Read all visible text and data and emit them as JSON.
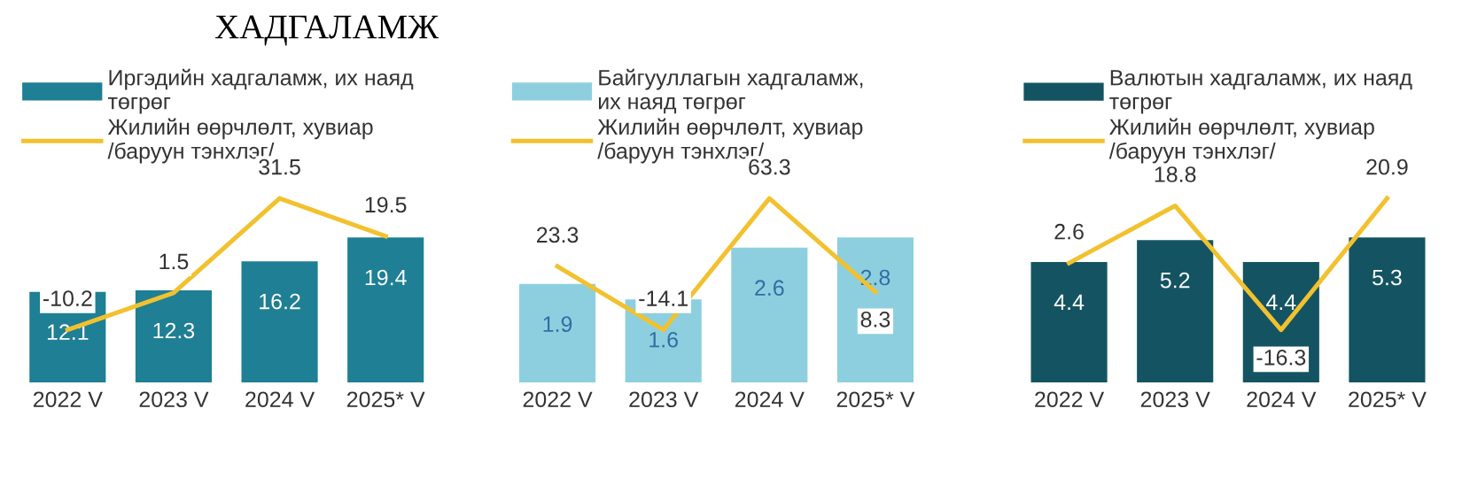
{
  "chart_data": [
    {
      "type": "bar",
      "title": "ХАДГАЛАМЖ",
      "categories": [
        "2022 V",
        "2023 V",
        "2024 V",
        "2025* V"
      ],
      "data_labels": true,
      "legend": "top",
      "tick_labels": "x",
      "series": [
        {
          "name": "Иргэдийн хадгаламж, их наяд\nтөгрөг",
          "color": "#1f7f94",
          "values": [
            12.1,
            12.3,
            16.2,
            19.4
          ]
        },
        {
          "type": "line",
          "axis": "y2",
          "name": "Жилийн өөрчлөлт, хувиар\n/баруун тэнхлэг/",
          "color": "#f2c12e",
          "values": [
            -10.2,
            1.5,
            31.5,
            19.5
          ]
        }
      ]
    },
    {
      "type": "bar",
      "categories": [
        "2022 V",
        "2023 V",
        "2024 V",
        "2025* V"
      ],
      "data_labels": true,
      "legend": "top",
      "tick_labels": "x",
      "series": [
        {
          "name": "Байгууллагын хадгаламж,\nих наяд төгрөг",
          "color": "#8ecfdf",
          "values": [
            1.9,
            1.6,
            2.6,
            2.8
          ]
        },
        {
          "type": "line",
          "axis": "y2",
          "name": "Жилийн өөрчлөлт, хувиар\n/баруун тэнхлэг/",
          "color": "#f2c12e",
          "values": [
            23.3,
            -14.1,
            63.3,
            8.3
          ]
        }
      ]
    },
    {
      "type": "bar",
      "categories": [
        "2022 V",
        "2023 V",
        "2024 V",
        "2025* V"
      ],
      "data_labels": true,
      "legend": "top",
      "tick_labels": "x",
      "series": [
        {
          "name": "Валютын хадгаламж, их наяд\nтөгрөг",
          "color": "#145462",
          "values": [
            4.4,
            5.2,
            4.4,
            5.3
          ]
        },
        {
          "type": "line",
          "axis": "y2",
          "name": "Жилийн өөрчлөлт, хувиар\n/баруун тэнхлэг/",
          "color": "#f2c12e",
          "values": [
            2.6,
            18.8,
            -16.3,
            20.9
          ]
        }
      ]
    }
  ]
}
